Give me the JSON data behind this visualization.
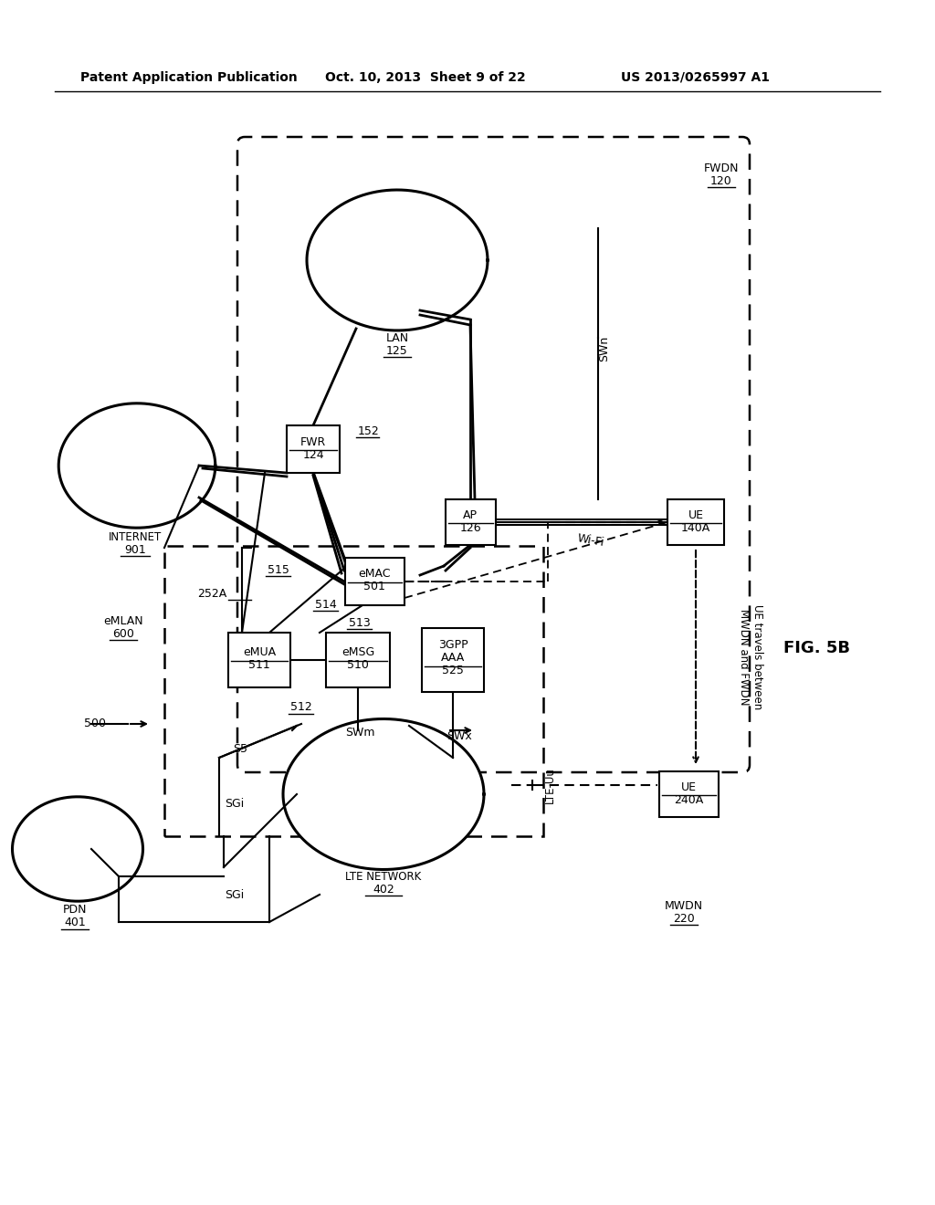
{
  "header_left": "Patent Application Publication",
  "header_center": "Oct. 10, 2013  Sheet 9 of 22",
  "header_right": "US 2013/0265997 A1",
  "fig_label": "FIG. 5B",
  "background_color": "#ffffff"
}
